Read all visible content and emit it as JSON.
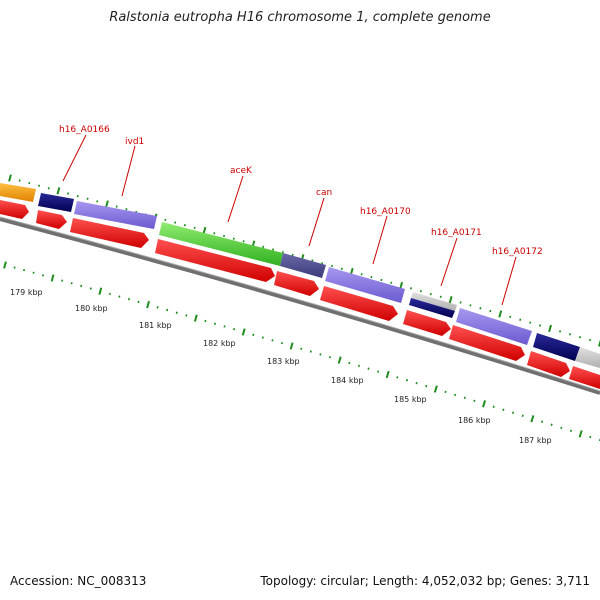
{
  "title": "Ralstonia eutropha H16 chromosome 1, complete genome",
  "footer": {
    "accession": "Accession: NC_008313",
    "summary": "Topology: circular; Length: 4,052,032 bp; Genes: 3,711"
  },
  "colors": {
    "backbone": "#808080",
    "cds": "#ff0000",
    "label": "#cc0000",
    "tick": "#1e8c1e"
  },
  "gene_labels": [
    "h16_A0166",
    "ivd1",
    "aceK",
    "can",
    "h16_A0170",
    "h16_A0171",
    "h16_A0172"
  ],
  "kbp_labels": [
    "179 kbp",
    "180 kbp",
    "181 kbp",
    "182 kbp",
    "183 kbp",
    "184 kbp",
    "185 kbp",
    "186 kbp",
    "187 kbp"
  ]
}
